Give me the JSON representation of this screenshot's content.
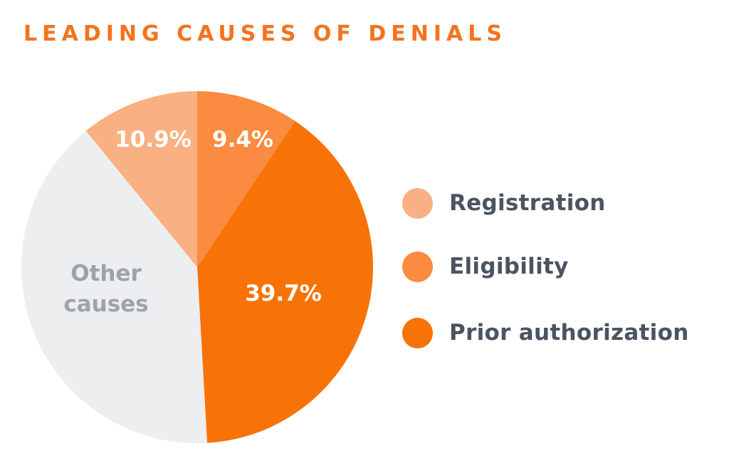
{
  "title": "LEADING CAUSES OF DENIALS",
  "colors": {
    "background": "#FFFFFF",
    "title": "#F4731D",
    "registration": "#F9B082",
    "eligibility": "#FA8B40",
    "prior_authorization": "#F87307",
    "other_causes": "#ECEEF0",
    "pct_label_text": "#FFFFFF",
    "other_label_text": "#9EA3A9",
    "legend_text": "#4A5461"
  },
  "chart_data": {
    "type": "pie",
    "title": "LEADING CAUSES OF DENIALS",
    "direction": "clockwise",
    "start_angle_deg_from_12_oclock": 0,
    "legend_position": "right",
    "slices": [
      {
        "name": "Eligibility",
        "value": 9.4,
        "display": "9.4%",
        "color": "#FA8B40"
      },
      {
        "name": "Prior authorization",
        "value": 39.7,
        "display": "39.7%",
        "color": "#F87307"
      },
      {
        "name": "Other causes",
        "value": 40.0,
        "display": "Other\ncauses",
        "color": "#ECEEF0"
      },
      {
        "name": "Registration",
        "value": 10.9,
        "display": "10.9%",
        "color": "#F9B082"
      }
    ]
  },
  "legend": {
    "items": [
      {
        "label": "Registration",
        "color": "#F9B082"
      },
      {
        "label": "Eligibility",
        "color": "#FA8B40"
      },
      {
        "label": "Prior authorization",
        "color": "#F87307"
      }
    ]
  }
}
